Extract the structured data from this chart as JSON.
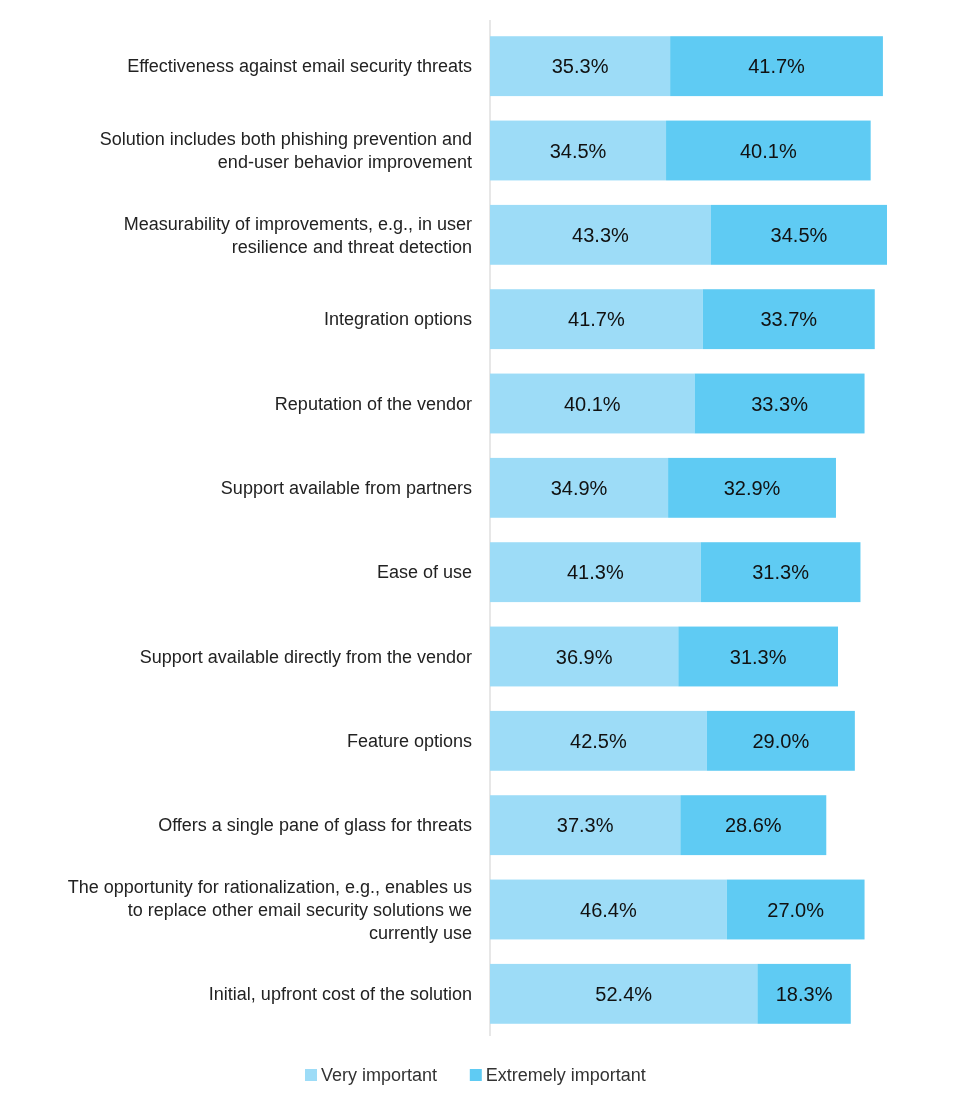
{
  "chart_data": {
    "type": "bar",
    "orientation": "horizontal",
    "stacked": true,
    "legend": "bottom",
    "categories": [
      "Effectiveness against email security threats",
      "Solution includes both phishing prevention and end-user behavior improvement",
      "Measurability of improvements, e.g., in user resilience and threat detection",
      "Integration options",
      "Reputation of the vendor",
      "Support available from partners",
      "Ease of use",
      "Support available directly from the vendor",
      "Feature options",
      "Offers a single pane of glass for threats",
      "The opportunity for rationalization, e.g., enables us to replace other email security solutions we currently use",
      "Initial, upfront cost of the solution"
    ],
    "series": [
      {
        "name": "Very important",
        "color": "#9ddcf7",
        "values": [
          35.3,
          34.5,
          43.3,
          41.7,
          40.1,
          34.9,
          41.3,
          36.9,
          42.5,
          37.3,
          46.4,
          52.4
        ],
        "value_labels": [
          "35.3%",
          "34.5%",
          "43.3%",
          "41.7%",
          "40.1%",
          "34.9%",
          "41.3%",
          "36.9%",
          "42.5%",
          "37.3%",
          "46.4%",
          "52.4%"
        ]
      },
      {
        "name": "Extremely important",
        "color": "#5fcbf3",
        "values": [
          41.7,
          40.1,
          34.5,
          33.7,
          33.3,
          32.9,
          31.3,
          31.3,
          29.0,
          28.6,
          27.0,
          18.3
        ],
        "value_labels": [
          "41.7%",
          "40.1%",
          "34.5%",
          "33.7%",
          "33.3%",
          "32.9%",
          "31.3%",
          "31.3%",
          "29.0%",
          "28.6%",
          "27.0%",
          "18.3%"
        ]
      }
    ]
  }
}
